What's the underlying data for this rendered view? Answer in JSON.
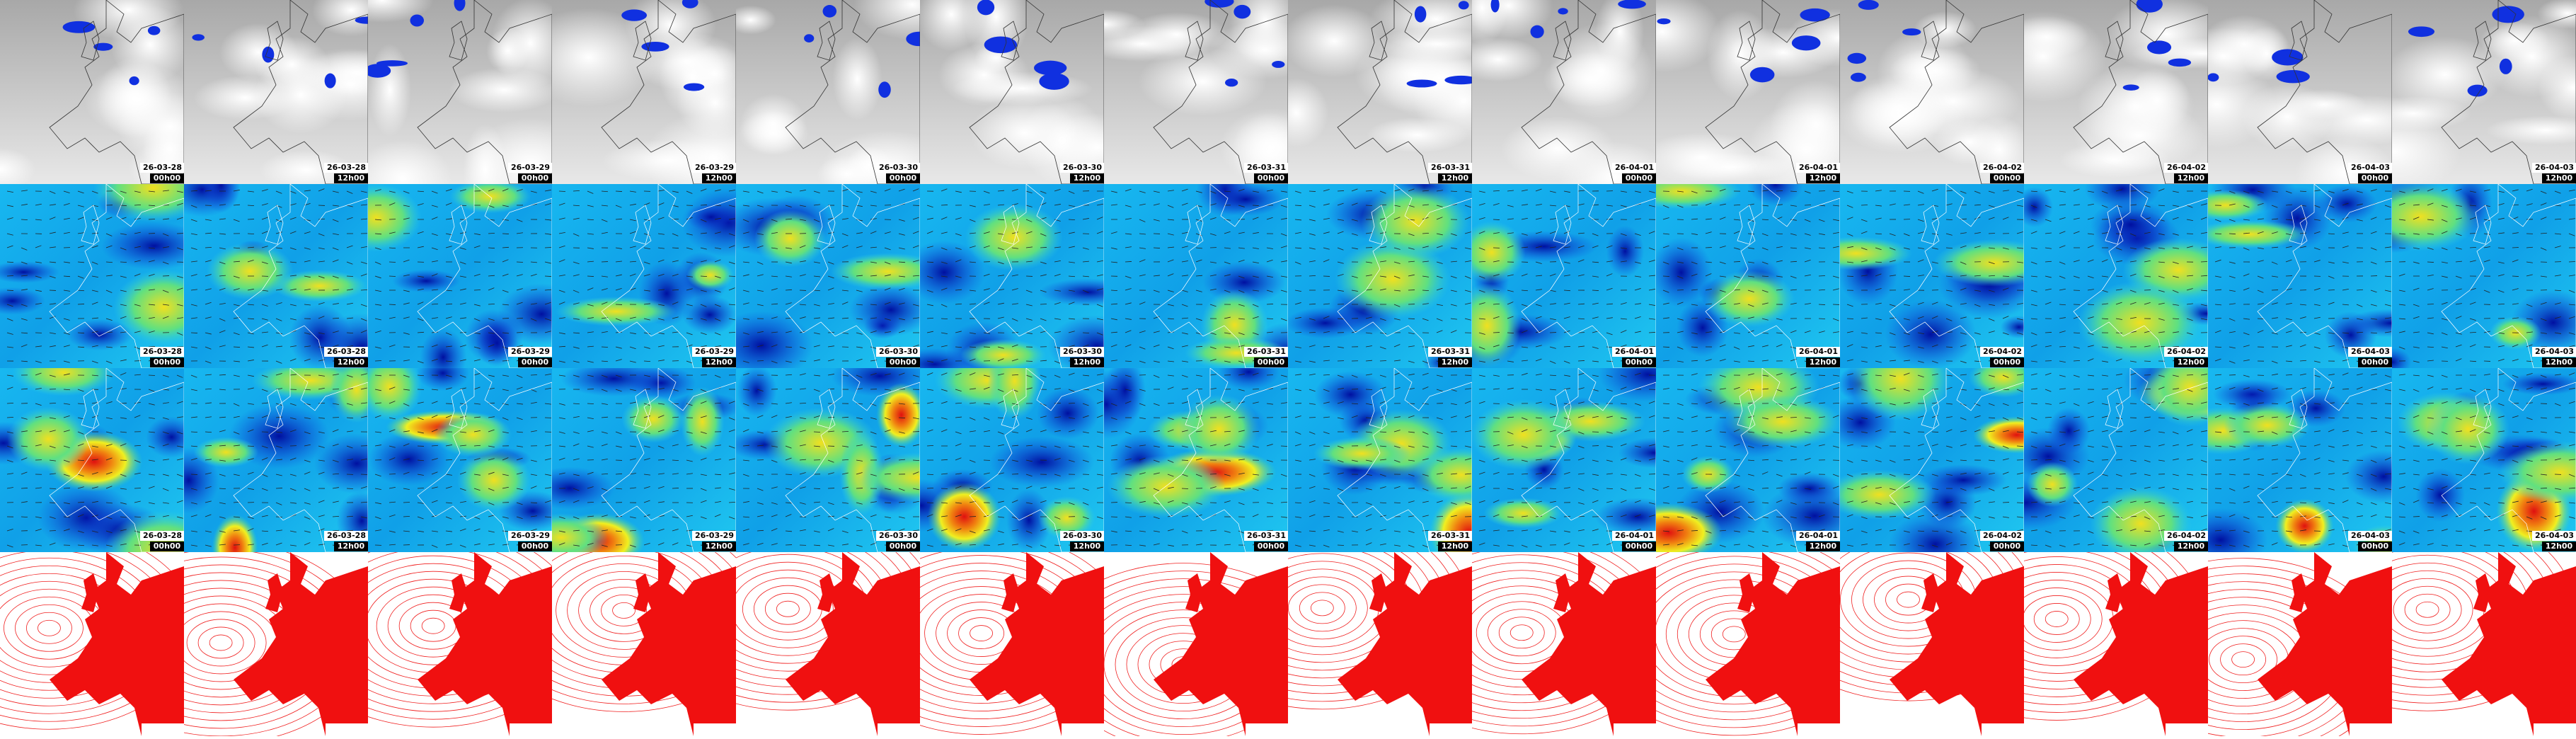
{
  "columns": [
    {
      "date": "26-03-28",
      "time": "00h00"
    },
    {
      "date": "26-03-28",
      "time": "12h00"
    },
    {
      "date": "26-03-29",
      "time": "00h00"
    },
    {
      "date": "26-03-29",
      "time": "12h00"
    },
    {
      "date": "26-03-30",
      "time": "00h00"
    },
    {
      "date": "26-03-30",
      "time": "12h00"
    },
    {
      "date": "26-03-31",
      "time": "00h00"
    },
    {
      "date": "26-03-31",
      "time": "12h00"
    },
    {
      "date": "26-04-01",
      "time": "00h00"
    },
    {
      "date": "26-04-01",
      "time": "12h00"
    },
    {
      "date": "26-04-02",
      "time": "00h00"
    },
    {
      "date": "26-04-02",
      "time": "12h00"
    },
    {
      "date": "26-04-03",
      "time": "00h00"
    },
    {
      "date": "26-04-03",
      "time": "12h00"
    }
  ]
}
